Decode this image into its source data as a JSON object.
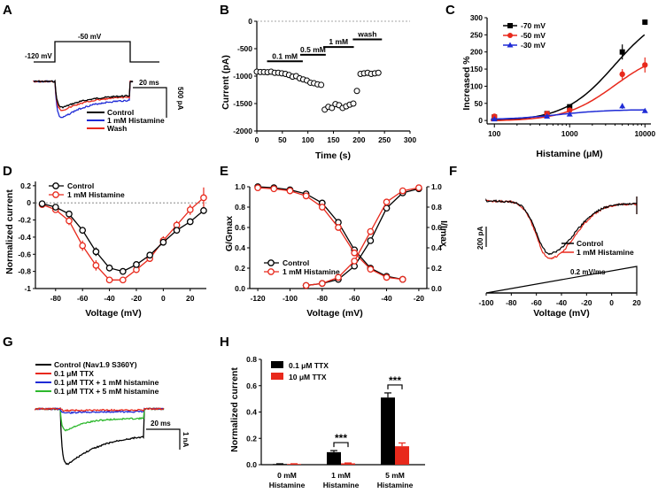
{
  "panels": {
    "A": {
      "label": "A",
      "protocol": {
        "hold": "-120 mV",
        "step": "-50 mV"
      },
      "scale": {
        "time": "20 ms",
        "current": "500 pA"
      },
      "legend": [
        {
          "name": "Control",
          "color": "#000000"
        },
        {
          "name": "1 mM Histamine",
          "color": "#1f2bd6"
        },
        {
          "name": "Wash",
          "color": "#e8291c"
        }
      ]
    },
    "B": {
      "label": "B",
      "ylabel": "Current (pA)",
      "xlabel": "Time (s)",
      "bars": [
        "0.1 mM",
        "0.5 mM",
        "1 mM",
        "wash"
      ]
    },
    "C": {
      "label": "C",
      "ylabel": "Increased %",
      "xlabel": "Histamine (μM)",
      "legend": [
        "-70 mV",
        "-50 mV",
        "-30 mV"
      ]
    },
    "D": {
      "label": "D",
      "ylabel": "Normalized current",
      "xlabel": "Voltage (mV)",
      "legend": [
        "Control",
        "1 mM Histamine"
      ]
    },
    "E": {
      "label": "E",
      "ylabel_left": "G/Gmax",
      "ylabel_right": "I/Imax",
      "xlabel": "Voltage (mV)",
      "legend": [
        "Control",
        "1 mM Histamine"
      ]
    },
    "F": {
      "label": "F",
      "scale": "200 pA",
      "ramp": "0.2 mV/ms",
      "xlabel": "Voltage (mV)",
      "legend": [
        "Control",
        "1 mM Histamine"
      ]
    },
    "G": {
      "label": "G",
      "legend": [
        {
          "name": "Control (Nav1.9 S360Y)",
          "color": "#000000"
        },
        {
          "name": "0.1 μM TTX",
          "color": "#e8291c"
        },
        {
          "name": "0.1 μM TTX + 1 mM histamine",
          "color": "#1f2bd6"
        },
        {
          "name": "0.1 μM TTX + 5 mM histamine",
          "color": "#2db82d"
        }
      ],
      "scale": {
        "time": "20 ms",
        "current": "1 nA"
      }
    },
    "H": {
      "label": "H",
      "ylabel": "Normalized current",
      "legend": [
        "0.1 μM TTX",
        "10 μM TTX"
      ],
      "sig": "***"
    }
  },
  "colors": {
    "black": "#000000",
    "red": "#e8291c",
    "blue": "#1f2bd6",
    "green": "#2db82d"
  },
  "chart_data": [
    {
      "id": "B",
      "type": "scatter",
      "title": "",
      "xlabel": "Time (s)",
      "ylabel": "Current (pA)",
      "xlim": [
        0,
        300
      ],
      "ylim": [
        -2000,
        0
      ],
      "xticks": [
        0,
        50,
        100,
        150,
        200,
        250,
        300
      ],
      "yticks": [
        -2000,
        -1500,
        -1000,
        -500,
        0
      ],
      "x": [
        0,
        7,
        14,
        21,
        28,
        35,
        42,
        49,
        56,
        63,
        70,
        77,
        84,
        91,
        98,
        105,
        112,
        119,
        126,
        133,
        140,
        147,
        154,
        161,
        168,
        175,
        182,
        189,
        196,
        203,
        210,
        217,
        224,
        231,
        238
      ],
      "y": [
        -920,
        -925,
        -925,
        -930,
        -920,
        -940,
        -940,
        -950,
        -960,
        -980,
        -1010,
        -1000,
        -1040,
        -1060,
        -1080,
        -1120,
        -1130,
        -1150,
        -1160,
        -1610,
        -1560,
        -1580,
        -1510,
        -1530,
        -1580,
        -1550,
        -1520,
        -1500,
        -1270,
        -960,
        -950,
        -940,
        -960,
        -950,
        -940
      ],
      "bars": [
        {
          "label": "0.1 mM",
          "start": 20,
          "end": 90,
          "level": -730
        },
        {
          "label": "0.5 mM",
          "start": 85,
          "end": 135,
          "level": -610
        },
        {
          "label": "1 mM",
          "start": 130,
          "end": 190,
          "level": -470
        },
        {
          "label": "wash",
          "start": 188,
          "end": 245,
          "level": -330
        }
      ]
    },
    {
      "id": "C",
      "type": "line",
      "xscale": "log",
      "xlabel": "Histamine (μM)",
      "ylabel": "Increased %",
      "xlim": [
        80,
        12000
      ],
      "ylim": [
        -10,
        300
      ],
      "xticks": [
        100,
        1000,
        10000
      ],
      "yticks": [
        0,
        50,
        100,
        150,
        200,
        250,
        300
      ],
      "x": [
        100,
        500,
        1000,
        5000,
        10000
      ],
      "series": [
        {
          "name": "-70 mV",
          "color": "#000000",
          "marker": "square",
          "values": [
            10,
            20,
            40,
            200,
            287
          ],
          "err": [
            5,
            5,
            7,
            22,
            8
          ],
          "fit": [
            -2,
            330,
            4000,
            1.3
          ]
        },
        {
          "name": "-50 mV",
          "color": "#e8291c",
          "marker": "circle",
          "values": [
            12,
            20,
            30,
            135,
            162
          ],
          "err": [
            4,
            4,
            5,
            15,
            22
          ],
          "fit": [
            -2,
            210,
            4000,
            1.3
          ]
        },
        {
          "name": "-30 mV",
          "color": "#1f2bd6",
          "marker": "triangle",
          "values": [
            4,
            12,
            18,
            42,
            28
          ],
          "err": [
            3,
            3,
            3,
            8,
            5
          ],
          "fit": [
            2,
            30,
            700,
            1.3
          ]
        }
      ]
    },
    {
      "id": "D",
      "type": "line",
      "xlabel": "Voltage (mV)",
      "ylabel": "Normalized current",
      "xlim": [
        -95,
        32
      ],
      "ylim": [
        -1.0,
        0.25
      ],
      "xticks": [
        -80,
        -60,
        -40,
        -20,
        0,
        20
      ],
      "yticks": [
        0.2,
        0.0,
        -0.2,
        -0.4,
        -0.6,
        -0.8,
        -1.0
      ],
      "x": [
        -90,
        -80,
        -70,
        -60,
        -50,
        -40,
        -30,
        -20,
        -10,
        0,
        10,
        20,
        30
      ],
      "series": [
        {
          "name": "Control",
          "color": "#000000",
          "values": [
            -0.01,
            -0.05,
            -0.13,
            -0.32,
            -0.57,
            -0.76,
            -0.8,
            -0.72,
            -0.61,
            -0.46,
            -0.32,
            -0.22,
            -0.09
          ],
          "err": [
            0.01,
            0.02,
            0.03,
            0.04,
            0.05,
            0.04,
            0.03,
            0.03,
            0.03,
            0.03,
            0.03,
            0.03,
            0.04
          ]
        },
        {
          "name": "1 mM Histamine",
          "color": "#e8291c",
          "values": [
            -0.02,
            -0.08,
            -0.21,
            -0.5,
            -0.73,
            -0.9,
            -0.9,
            -0.78,
            -0.65,
            -0.44,
            -0.26,
            -0.08,
            0.06
          ],
          "err": [
            0.02,
            0.03,
            0.05,
            0.06,
            0.06,
            0.03,
            0.03,
            0.04,
            0.04,
            0.05,
            0.05,
            0.06,
            0.12
          ]
        }
      ]
    },
    {
      "id": "E",
      "type": "line",
      "xlabel": "Voltage (mV)",
      "ylabel": "G/Gmax",
      "y2label": "I/Imax",
      "xlim": [
        -125,
        -15
      ],
      "ylim": [
        0,
        1.0
      ],
      "xticks": [
        -120,
        -100,
        -80,
        -60,
        -40,
        -20
      ],
      "yticks": [
        0.0,
        0.2,
        0.4,
        0.6,
        0.8,
        1.0
      ],
      "series": [
        {
          "name": "Control inactivation",
          "color": "#000000",
          "x": [
            -120,
            -110,
            -100,
            -90,
            -80,
            -70,
            -60,
            -50,
            -40,
            -30
          ],
          "values": [
            1.0,
            0.99,
            0.97,
            0.93,
            0.84,
            0.65,
            0.38,
            0.2,
            0.12,
            0.09
          ]
        },
        {
          "name": "Histamine inactivation",
          "color": "#e8291c",
          "x": [
            -120,
            -110,
            -100,
            -90,
            -80,
            -70,
            -60,
            -50,
            -40,
            -30
          ],
          "values": [
            0.99,
            0.98,
            0.96,
            0.91,
            0.8,
            0.6,
            0.35,
            0.19,
            0.11,
            0.09
          ]
        },
        {
          "name": "Control activation",
          "color": "#000000",
          "x": [
            -90,
            -80,
            -70,
            -60,
            -50,
            -40,
            -30,
            -20
          ],
          "values": [
            0.03,
            0.05,
            0.09,
            0.22,
            0.47,
            0.79,
            0.94,
            0.98
          ]
        },
        {
          "name": "Histamine activation",
          "color": "#e8291c",
          "x": [
            -90,
            -80,
            -70,
            -60,
            -50,
            -40,
            -30,
            -20
          ],
          "values": [
            0.03,
            0.05,
            0.11,
            0.27,
            0.56,
            0.85,
            0.96,
            0.99
          ]
        }
      ]
    },
    {
      "id": "F",
      "type": "line",
      "xlabel": "Voltage (mV)",
      "xlim": [
        -100,
        20
      ],
      "xticks": [
        -100,
        -80,
        -60,
        -40,
        -20,
        0,
        20
      ],
      "note": "ramp current traces, peak near -45 mV"
    },
    {
      "id": "H",
      "type": "bar",
      "ylabel": "Normalized current",
      "categories": [
        "0 mM\nHistamine",
        "1 mM\nHistamine",
        "5 mM\nHistamine"
      ],
      "ylim": [
        0,
        0.8
      ],
      "yticks": [
        0.0,
        0.2,
        0.4,
        0.6,
        0.8
      ],
      "series": [
        {
          "name": "0.1 μM TTX",
          "color": "#000000",
          "values": [
            0.005,
            0.095,
            0.51
          ],
          "err": [
            0.002,
            0.012,
            0.035
          ]
        },
        {
          "name": "10 μM TTX",
          "color": "#e8291c",
          "values": [
            0.005,
            0.01,
            0.14
          ],
          "err": [
            0.002,
            0.003,
            0.025
          ]
        }
      ],
      "significance": [
        "",
        "***",
        "***"
      ]
    }
  ]
}
